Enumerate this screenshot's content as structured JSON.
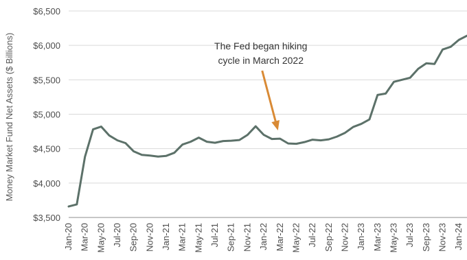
{
  "chart_data": {
    "type": "line",
    "title": "",
    "xlabel": "",
    "ylabel": "Money Market Fund Net Assets ($ Billions)",
    "ylim": [
      3500,
      6500
    ],
    "y_ticks": [
      "$3,500",
      "$4,000",
      "$4,500",
      "$5,000",
      "$5,500",
      "$6,000",
      "$6,500"
    ],
    "y_tick_values": [
      3500,
      4000,
      4500,
      5000,
      5500,
      6000,
      6500
    ],
    "x_tick_labels": [
      "Jan-20",
      "Mar-20",
      "May-20",
      "Jul-20",
      "Sep-20",
      "Nov-20",
      "Jan-21",
      "Mar-21",
      "May-21",
      "Jul-21",
      "Sep-21",
      "Nov-21",
      "Jan-22",
      "Mar-22",
      "May-22",
      "Jul-22",
      "Sep-22",
      "Nov-22",
      "Jan-23",
      "Mar-23",
      "May-23",
      "Jul-23",
      "Sep-23",
      "Nov-23",
      "Jan-24"
    ],
    "x": [
      "Jan-20",
      "Feb-20",
      "Mar-20",
      "Apr-20",
      "May-20",
      "Jun-20",
      "Jul-20",
      "Aug-20",
      "Sep-20",
      "Oct-20",
      "Nov-20",
      "Dec-20",
      "Jan-21",
      "Feb-21",
      "Mar-21",
      "Apr-21",
      "May-21",
      "Jun-21",
      "Jul-21",
      "Aug-21",
      "Sep-21",
      "Oct-21",
      "Nov-21",
      "Dec-21",
      "Jan-22",
      "Feb-22",
      "Mar-22",
      "Apr-22",
      "May-22",
      "Jun-22",
      "Jul-22",
      "Aug-22",
      "Sep-22",
      "Oct-22",
      "Nov-22",
      "Dec-22",
      "Jan-23",
      "Feb-23",
      "Mar-23",
      "Apr-23",
      "May-23",
      "Jun-23",
      "Jul-23",
      "Aug-23",
      "Sep-23",
      "Oct-23",
      "Nov-23",
      "Dec-23",
      "Jan-24",
      "Feb-24"
    ],
    "series": [
      {
        "values": [
          3660,
          3690,
          4380,
          4780,
          4820,
          4690,
          4620,
          4580,
          4460,
          4410,
          4400,
          4385,
          4395,
          4440,
          4560,
          4600,
          4660,
          4600,
          4585,
          4610,
          4615,
          4625,
          4700,
          4825,
          4700,
          4640,
          4645,
          4575,
          4570,
          4595,
          4630,
          4620,
          4635,
          4675,
          4730,
          4815,
          4860,
          4925,
          5280,
          5300,
          5470,
          5500,
          5530,
          5660,
          5740,
          5730,
          5940,
          5980,
          6080,
          6140
        ]
      }
    ],
    "colors": {
      "line": "#5c7169",
      "arrow": "#d98a35",
      "grid": "#d9d9d9",
      "axis": "#8c8c8c"
    },
    "grid": "horizontal",
    "annotation": {
      "lines": [
        "The Fed began hiking",
        "cycle in March 2022"
      ],
      "points_to": "Mar-22"
    }
  }
}
